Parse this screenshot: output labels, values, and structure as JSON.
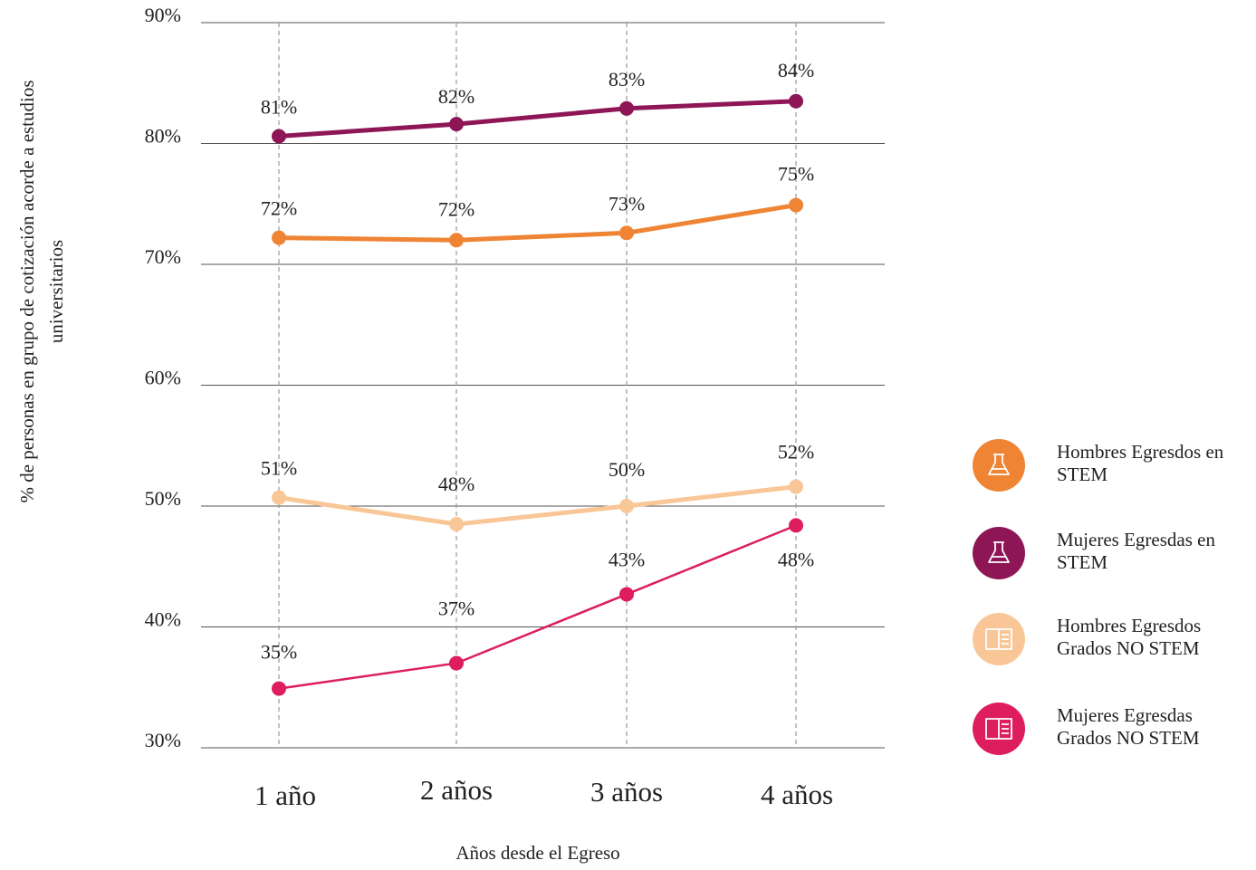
{
  "chart_data": {
    "type": "line",
    "x_label": "Años desde el Egreso",
    "y_label": "% de personas en grupo de cotización acorde a estudios universitarios",
    "categories": [
      "1 año",
      "2 años",
      "3 años",
      "4 años"
    ],
    "ylim": [
      30,
      90
    ],
    "yticks": [
      {
        "value": 30,
        "label": "30%"
      },
      {
        "value": 40,
        "label": "40%"
      },
      {
        "value": 50,
        "label": "50%"
      },
      {
        "value": 60,
        "label": "60%"
      },
      {
        "value": 70,
        "label": "70%"
      },
      {
        "value": 80,
        "label": "80%"
      },
      {
        "value": 90,
        "label": "90%"
      }
    ],
    "grid": true,
    "legend": "right",
    "series": [
      {
        "name": "Hombres Egresdos en STEM",
        "color": "#ee8434",
        "values": [
          72.2,
          72.0,
          72.6,
          74.9
        ],
        "value_labels": [
          "72%",
          "72%",
          "73%",
          "75%"
        ]
      },
      {
        "name": "Mujeres Egresdas en STEM",
        "color": "#8e1656",
        "values": [
          80.6,
          81.6,
          82.9,
          83.5
        ],
        "value_labels": [
          "81%",
          "82%",
          "83%",
          "84%"
        ]
      },
      {
        "name": "Hombres Egresdos Grados NO STEM",
        "color": "#f9c797",
        "values": [
          50.7,
          48.5,
          50.0,
          51.6
        ],
        "value_labels": [
          "51%",
          "48%",
          "50%",
          "52%"
        ]
      },
      {
        "name": "Mujeres Egresdas Grados NO STEM",
        "color": "#dd1d5d",
        "values": [
          34.9,
          37.0,
          42.7,
          48.4
        ],
        "value_labels": [
          "35%",
          "37%",
          "43%",
          "48%"
        ]
      }
    ]
  }
}
